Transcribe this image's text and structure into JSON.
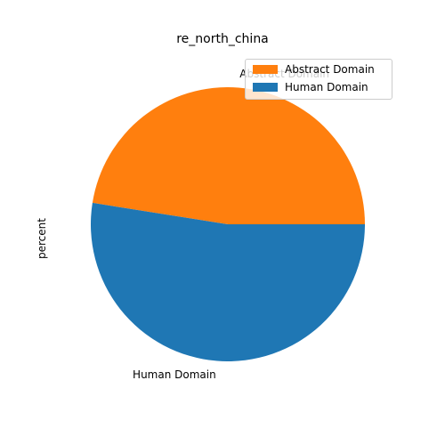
{
  "chart_data": {
    "type": "pie",
    "title": "re_north_china",
    "ylabel": "percent",
    "series": [
      {
        "name": "Abstract Domain",
        "value": 47.5,
        "color": "#ff7f0e"
      },
      {
        "name": "Human Domain",
        "value": 52.5,
        "color": "#1f77b4"
      }
    ],
    "legend": {
      "placement": "top-right",
      "entries": [
        "Abstract Domain",
        "Human Domain"
      ]
    },
    "slice_labels": [
      "Abstract Domain",
      "Human Domain"
    ]
  }
}
